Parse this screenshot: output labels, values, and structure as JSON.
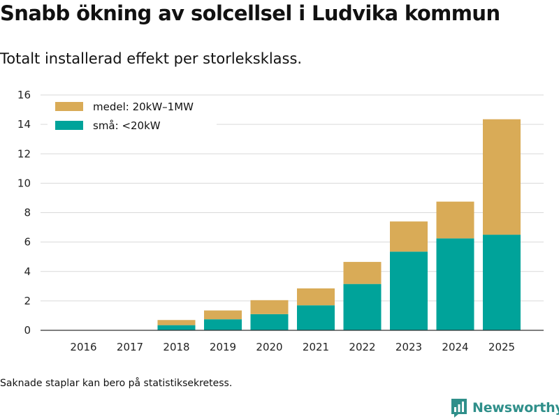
{
  "title": "Snabb ökning av solcellsel i Ludvika kommun",
  "subtitle": "Totalt installerad effekt per storleksklass.",
  "note": "Saknade staplar kan bero på statistiksekretess.",
  "brand": {
    "name": "Newsworthy",
    "icon": "newsworthy-logo-icon",
    "color": "#2f8f8a"
  },
  "chart_data": {
    "type": "bar",
    "stacked": true,
    "categories": [
      "2016",
      "2017",
      "2018",
      "2019",
      "2020",
      "2021",
      "2022",
      "2023",
      "2024",
      "2025"
    ],
    "series": [
      {
        "name": "små: <20kW",
        "color": "#00a39a",
        "values": [
          0,
          0,
          0.35,
          0.75,
          1.1,
          1.7,
          3.15,
          5.35,
          6.25,
          6.5
        ]
      },
      {
        "name": "medel: 20kW–1MW",
        "color": "#d9ab57",
        "values": [
          0,
          0,
          0.35,
          0.6,
          0.95,
          1.15,
          1.5,
          2.05,
          2.5,
          7.85
        ]
      }
    ],
    "legend_order": [
      1,
      0
    ],
    "legend_position": "top-left",
    "ylim": [
      0,
      16
    ],
    "yticks": [
      0,
      2,
      4,
      6,
      8,
      10,
      12,
      14,
      16
    ],
    "grid": true,
    "xlabel": "",
    "ylabel": ""
  }
}
